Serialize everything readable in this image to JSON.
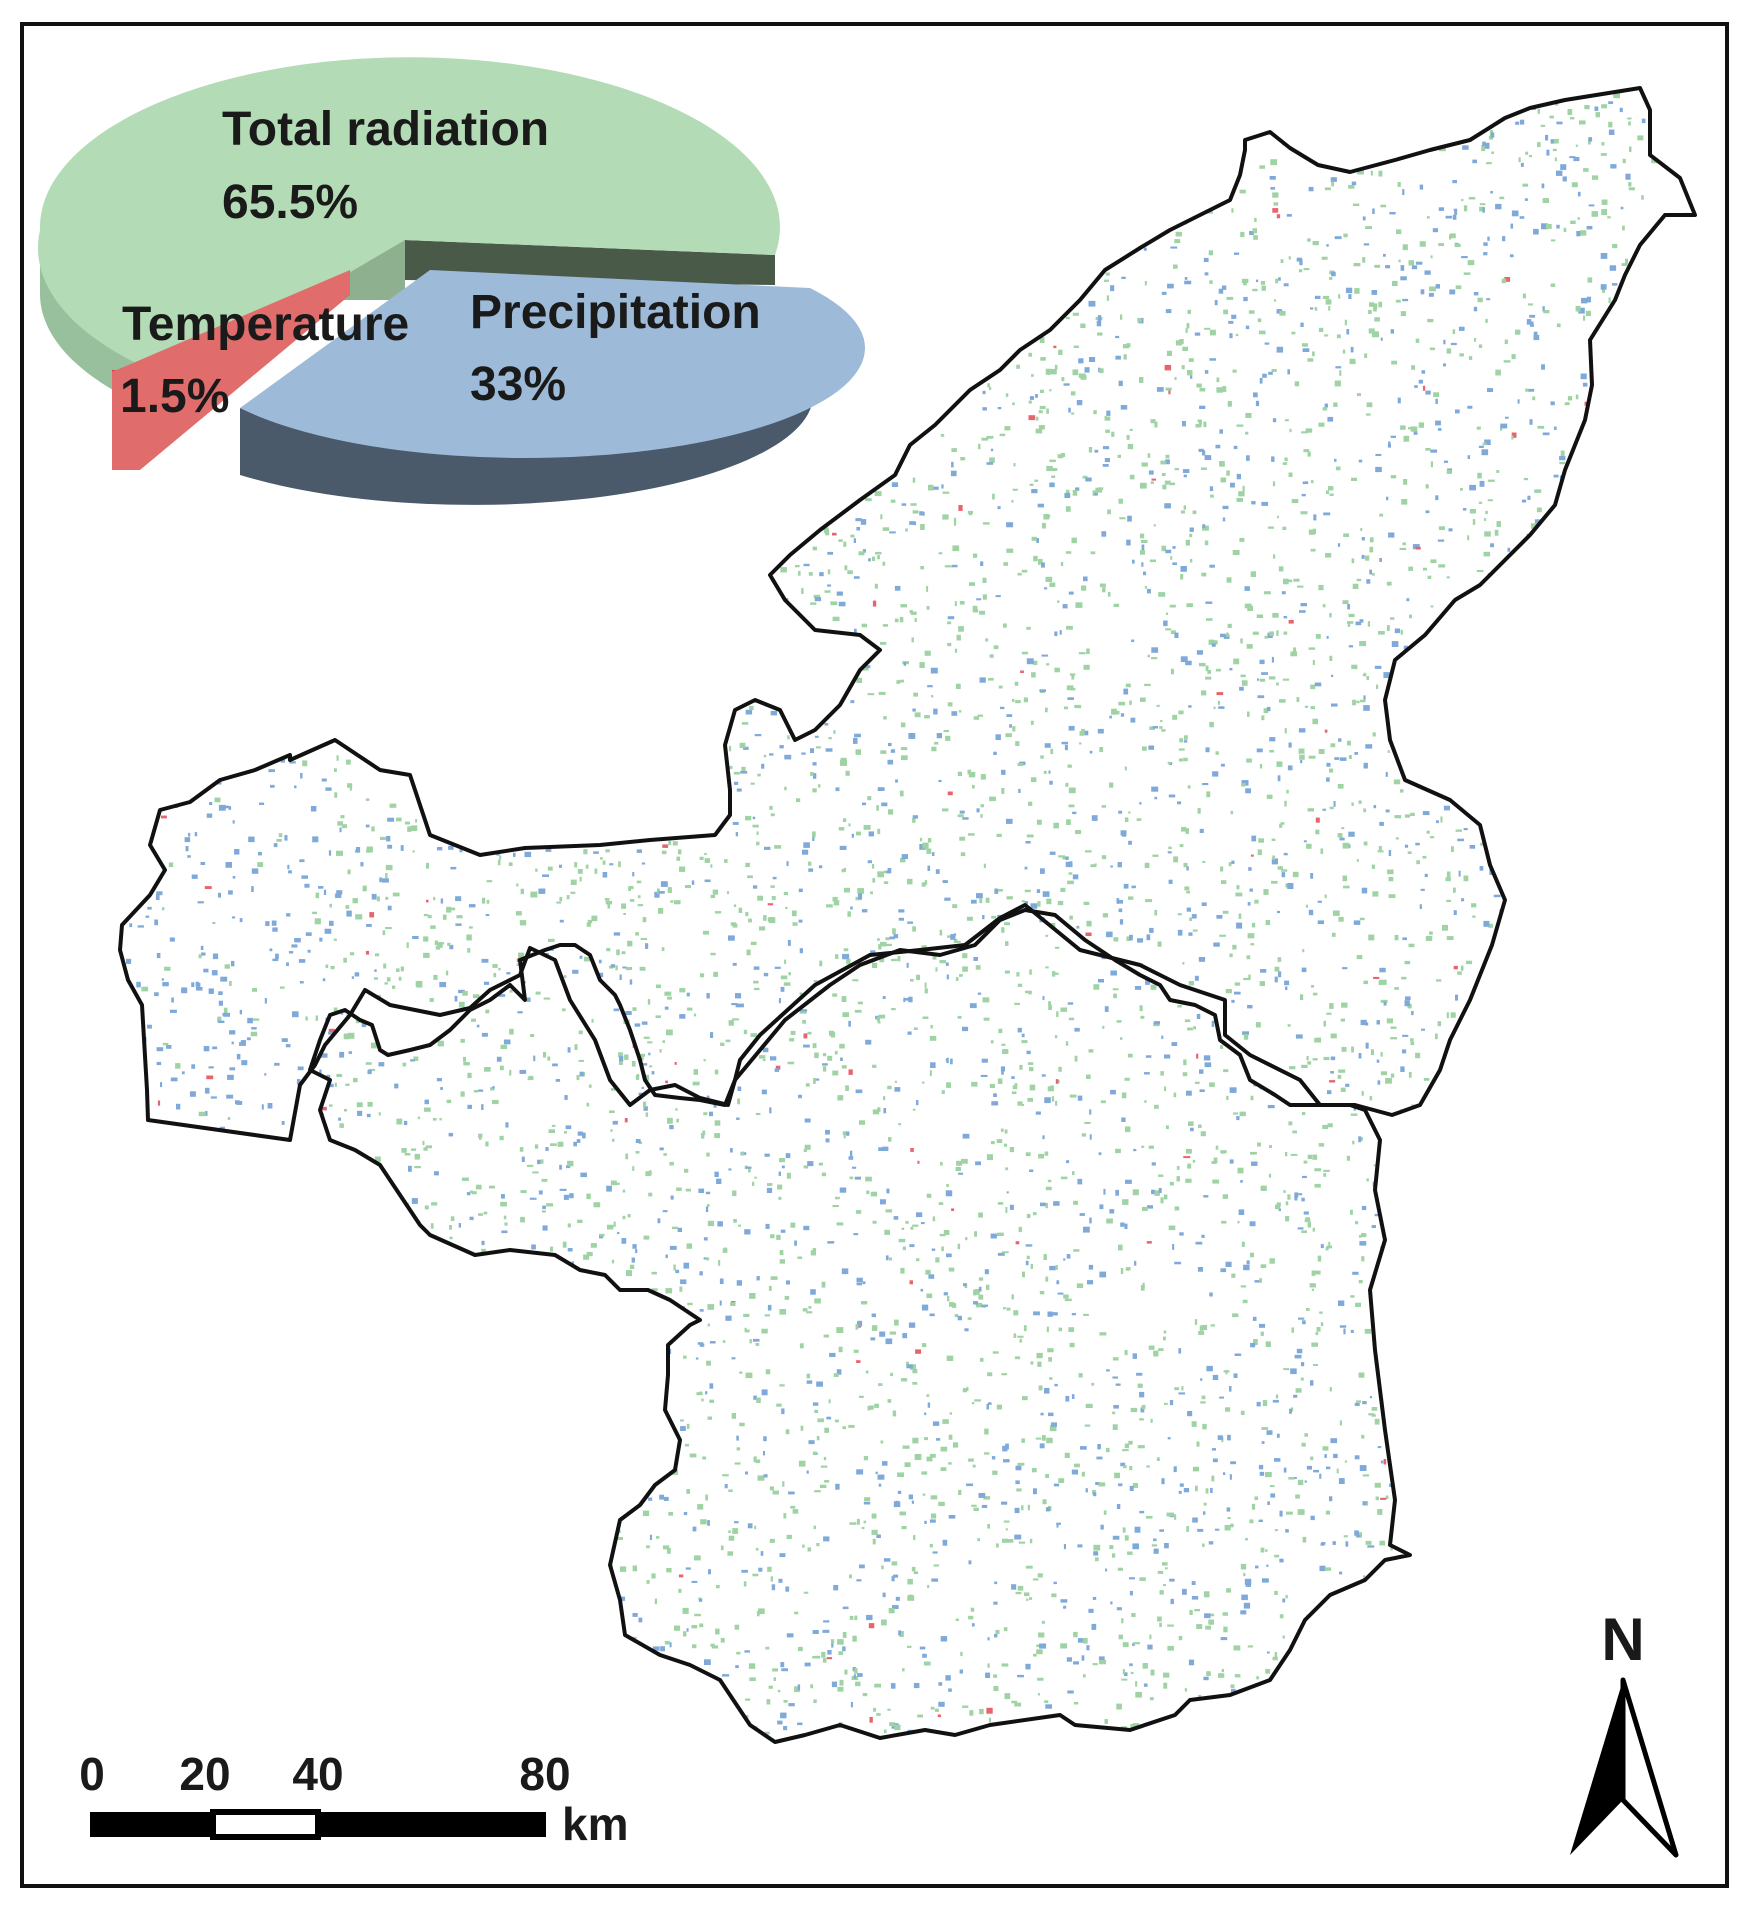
{
  "pie": {
    "slices": [
      {
        "name": "Total radiation",
        "percent_label": "65.5%",
        "value": 65.5,
        "top_color": "#b3dbb5",
        "side_color": "#98c09c",
        "dark_color": "#4a5a48"
      },
      {
        "name": "Temperature",
        "percent_label": "1.5%",
        "value": 1.5,
        "top_color": "#e06c6c",
        "side_color": "#d04f4f"
      },
      {
        "name": "Precipitation",
        "percent_label": "33%",
        "value": 33,
        "top_color": "#9dbbd8",
        "side_color": "#4a5a6a"
      }
    ]
  },
  "map": {
    "pixel_colors": {
      "radiation": "#9fd3a4",
      "precipitation": "#7ea9d9",
      "temperature": "#e8646c"
    },
    "boundary_color": "#111111"
  },
  "scale_bar": {
    "ticks": [
      "0",
      "20",
      "40",
      "80"
    ],
    "unit": "km"
  },
  "north_arrow": {
    "label": "N"
  }
}
